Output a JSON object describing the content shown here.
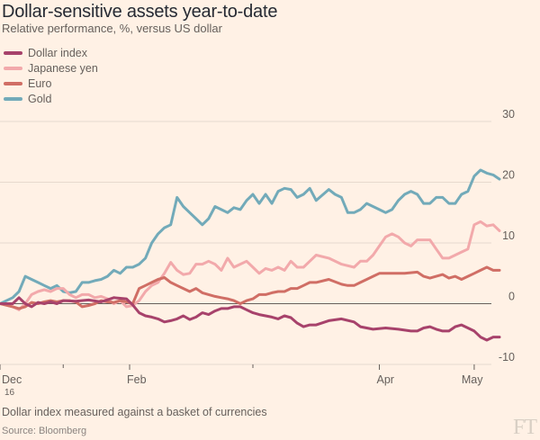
{
  "header": {
    "title": "Dollar-sensitive assets year-to-date",
    "subtitle": "Relative performance, %, versus US dollar"
  },
  "footer": {
    "note": "Dollar index measured against a basket of currencies",
    "source": "Source: Bloomberg",
    "logo": "FT"
  },
  "chart_data": {
    "type": "line",
    "title": "Dollar-sensitive assets year-to-date",
    "ylabel": "Relative performance, %, versus US dollar",
    "ylim": [
      -10,
      30
    ],
    "yticks": [
      30,
      20,
      10,
      0,
      -10
    ],
    "xticks": [
      {
        "label": "Dec",
        "sub": "16",
        "t": 0
      },
      {
        "label": "Feb",
        "sub": "",
        "t": 41
      },
      {
        "label": "Apr",
        "sub": "",
        "t": 120
      },
      {
        "label": "May",
        "sub": "",
        "t": 150
      }
    ],
    "grid": true,
    "legend": "top-left",
    "series": [
      {
        "name": "Dollar index",
        "color": "#a7426b",
        "values": [
          [
            0,
            0
          ],
          [
            4,
            0
          ],
          [
            6,
            1
          ],
          [
            8,
            0
          ],
          [
            10,
            -0.5
          ],
          [
            12,
            0.2
          ],
          [
            14,
            0
          ],
          [
            16,
            0.3
          ],
          [
            18,
            0
          ],
          [
            20,
            0.5
          ],
          [
            24,
            0.4
          ],
          [
            28,
            0.6
          ],
          [
            32,
            0.3
          ],
          [
            36,
            1
          ],
          [
            40,
            0.8
          ],
          [
            42,
            -0.2
          ],
          [
            44,
            -1.5
          ],
          [
            46,
            -2
          ],
          [
            48,
            -2.2
          ],
          [
            50,
            -2.5
          ],
          [
            52,
            -3
          ],
          [
            54,
            -2.8
          ],
          [
            56,
            -2.5
          ],
          [
            58,
            -2
          ],
          [
            60,
            -2.6
          ],
          [
            62,
            -2.2
          ],
          [
            64,
            -1.5
          ],
          [
            66,
            -1.8
          ],
          [
            68,
            -1.2
          ],
          [
            70,
            -0.8
          ],
          [
            72,
            -0.8
          ],
          [
            74,
            -0.5
          ],
          [
            76,
            -0.5
          ],
          [
            78,
            -1
          ],
          [
            80,
            -1.5
          ],
          [
            82,
            -1.8
          ],
          [
            84,
            -2
          ],
          [
            86,
            -2.2
          ],
          [
            88,
            -2.5
          ],
          [
            90,
            -2
          ],
          [
            92,
            -2.3
          ],
          [
            94,
            -3.2
          ],
          [
            96,
            -3.8
          ],
          [
            98,
            -3.5
          ],
          [
            100,
            -3.5
          ],
          [
            104,
            -2.8
          ],
          [
            108,
            -2.5
          ],
          [
            112,
            -3
          ],
          [
            114,
            -3.8
          ],
          [
            118,
            -4.2
          ],
          [
            122,
            -4
          ],
          [
            126,
            -4.2
          ],
          [
            130,
            -4.5
          ],
          [
            132,
            -4.5
          ],
          [
            134,
            -4
          ],
          [
            136,
            -3.8
          ],
          [
            138,
            -4.2
          ],
          [
            140,
            -4.5
          ],
          [
            142,
            -4.5
          ],
          [
            144,
            -3.8
          ],
          [
            146,
            -3.5
          ],
          [
            148,
            -4
          ],
          [
            150,
            -4.5
          ],
          [
            152,
            -5.5
          ],
          [
            154,
            -6
          ],
          [
            156,
            -5.5
          ],
          [
            158,
            -5.5
          ]
        ]
      },
      {
        "name": "Japanese yen",
        "color": "#f2a9ab",
        "values": [
          [
            0,
            0
          ],
          [
            4,
            -0.5
          ],
          [
            6,
            -1
          ],
          [
            8,
            0
          ],
          [
            10,
            1.5
          ],
          [
            12,
            2
          ],
          [
            14,
            2.3
          ],
          [
            16,
            2
          ],
          [
            18,
            2.5
          ],
          [
            20,
            2.5
          ],
          [
            22,
            1.5
          ],
          [
            24,
            1
          ],
          [
            26,
            1.5
          ],
          [
            28,
            1.5
          ],
          [
            30,
            1
          ],
          [
            32,
            1.2
          ],
          [
            34,
            0.8
          ],
          [
            36,
            0
          ],
          [
            38,
            0.5
          ],
          [
            40,
            -0.5
          ],
          [
            42,
            -0.3
          ],
          [
            44,
            0.5
          ],
          [
            46,
            2
          ],
          [
            48,
            3
          ],
          [
            50,
            3.5
          ],
          [
            52,
            5
          ],
          [
            54,
            6.8
          ],
          [
            56,
            5.5
          ],
          [
            58,
            4.8
          ],
          [
            60,
            5
          ],
          [
            62,
            6.5
          ],
          [
            64,
            6.5
          ],
          [
            66,
            7
          ],
          [
            68,
            6.5
          ],
          [
            70,
            5.5
          ],
          [
            72,
            7.5
          ],
          [
            74,
            6
          ],
          [
            76,
            6.5
          ],
          [
            78,
            7
          ],
          [
            80,
            6
          ],
          [
            82,
            5
          ],
          [
            84,
            5.8
          ],
          [
            86,
            5.5
          ],
          [
            88,
            6
          ],
          [
            90,
            5.5
          ],
          [
            92,
            7
          ],
          [
            94,
            6
          ],
          [
            96,
            6
          ],
          [
            98,
            7
          ],
          [
            100,
            8
          ],
          [
            104,
            7.5
          ],
          [
            108,
            6.5
          ],
          [
            112,
            6
          ],
          [
            114,
            7
          ],
          [
            116,
            7
          ],
          [
            118,
            8
          ],
          [
            120,
            9.5
          ],
          [
            122,
            11
          ],
          [
            124,
            11.5
          ],
          [
            126,
            11
          ],
          [
            128,
            10
          ],
          [
            130,
            9.5
          ],
          [
            132,
            10.5
          ],
          [
            134,
            10.5
          ],
          [
            136,
            10.5
          ],
          [
            138,
            9
          ],
          [
            140,
            7.5
          ],
          [
            142,
            7.5
          ],
          [
            144,
            8
          ],
          [
            146,
            8.5
          ],
          [
            148,
            9
          ],
          [
            150,
            13
          ],
          [
            152,
            13.5
          ],
          [
            154,
            12.8
          ],
          [
            156,
            13
          ],
          [
            158,
            12
          ]
        ]
      },
      {
        "name": "Euro",
        "color": "#d06e65",
        "values": [
          [
            0,
            0
          ],
          [
            4,
            -0.5
          ],
          [
            6,
            -0.8
          ],
          [
            8,
            -0.5
          ],
          [
            10,
            0.2
          ],
          [
            12,
            0
          ],
          [
            14,
            0.3
          ],
          [
            16,
            0.5
          ],
          [
            18,
            0.3
          ],
          [
            20,
            0.5
          ],
          [
            22,
            0.5
          ],
          [
            24,
            0.3
          ],
          [
            26,
            -0.5
          ],
          [
            28,
            -0.3
          ],
          [
            30,
            0
          ],
          [
            32,
            0.5
          ],
          [
            34,
            0.3
          ],
          [
            36,
            0.2
          ],
          [
            38,
            0.5
          ],
          [
            40,
            0.3
          ],
          [
            42,
            0
          ],
          [
            44,
            2.5
          ],
          [
            46,
            3
          ],
          [
            48,
            3.5
          ],
          [
            50,
            4
          ],
          [
            52,
            4.3
          ],
          [
            54,
            3.5
          ],
          [
            56,
            3
          ],
          [
            58,
            2.5
          ],
          [
            60,
            2
          ],
          [
            62,
            2.5
          ],
          [
            64,
            1.8
          ],
          [
            66,
            1.5
          ],
          [
            68,
            1.2
          ],
          [
            70,
            1
          ],
          [
            72,
            0.8
          ],
          [
            74,
            0.5
          ],
          [
            76,
            0
          ],
          [
            78,
            0.5
          ],
          [
            80,
            0.8
          ],
          [
            82,
            1.5
          ],
          [
            84,
            1.5
          ],
          [
            86,
            1.8
          ],
          [
            88,
            2
          ],
          [
            90,
            2
          ],
          [
            92,
            2.5
          ],
          [
            94,
            2.5
          ],
          [
            96,
            3
          ],
          [
            98,
            3.5
          ],
          [
            100,
            3.5
          ],
          [
            104,
            4
          ],
          [
            108,
            3.2
          ],
          [
            110,
            3
          ],
          [
            112,
            3
          ],
          [
            114,
            3.5
          ],
          [
            116,
            4
          ],
          [
            118,
            4.5
          ],
          [
            120,
            5
          ],
          [
            124,
            5
          ],
          [
            128,
            5
          ],
          [
            132,
            5.2
          ],
          [
            134,
            4.5
          ],
          [
            136,
            4.2
          ],
          [
            138,
            4.5
          ],
          [
            140,
            4.8
          ],
          [
            142,
            4.2
          ],
          [
            144,
            4.5
          ],
          [
            146,
            4
          ],
          [
            148,
            4.5
          ],
          [
            150,
            5
          ],
          [
            152,
            5.5
          ],
          [
            154,
            6
          ],
          [
            156,
            5.5
          ],
          [
            158,
            5.5
          ]
        ]
      },
      {
        "name": "Gold",
        "color": "#72aab9",
        "values": [
          [
            0,
            0
          ],
          [
            4,
            1
          ],
          [
            6,
            2
          ],
          [
            8,
            4.5
          ],
          [
            10,
            4
          ],
          [
            12,
            3.5
          ],
          [
            14,
            3
          ],
          [
            16,
            2.5
          ],
          [
            18,
            3
          ],
          [
            20,
            2
          ],
          [
            22,
            1.8
          ],
          [
            24,
            2
          ],
          [
            26,
            3.5
          ],
          [
            28,
            3.5
          ],
          [
            30,
            3.8
          ],
          [
            32,
            4
          ],
          [
            34,
            4.5
          ],
          [
            36,
            5.5
          ],
          [
            38,
            5
          ],
          [
            40,
            6
          ],
          [
            42,
            6
          ],
          [
            44,
            6.5
          ],
          [
            46,
            7.5
          ],
          [
            48,
            10
          ],
          [
            50,
            11.5
          ],
          [
            52,
            12.5
          ],
          [
            54,
            13
          ],
          [
            56,
            17.5
          ],
          [
            58,
            16
          ],
          [
            60,
            15
          ],
          [
            62,
            14
          ],
          [
            64,
            13
          ],
          [
            66,
            14
          ],
          [
            68,
            16
          ],
          [
            70,
            15.5
          ],
          [
            72,
            15
          ],
          [
            74,
            15.8
          ],
          [
            76,
            15.5
          ],
          [
            78,
            17
          ],
          [
            80,
            18
          ],
          [
            82,
            16.5
          ],
          [
            84,
            18
          ],
          [
            86,
            16.5
          ],
          [
            88,
            18.5
          ],
          [
            90,
            19
          ],
          [
            92,
            18.8
          ],
          [
            94,
            17.5
          ],
          [
            96,
            18
          ],
          [
            98,
            19
          ],
          [
            100,
            17
          ],
          [
            104,
            18.8
          ],
          [
            106,
            18
          ],
          [
            108,
            17.5
          ],
          [
            110,
            15
          ],
          [
            112,
            15
          ],
          [
            114,
            15.5
          ],
          [
            116,
            16.5
          ],
          [
            118,
            16
          ],
          [
            120,
            15.5
          ],
          [
            122,
            15
          ],
          [
            124,
            15.5
          ],
          [
            126,
            17
          ],
          [
            128,
            18
          ],
          [
            130,
            18.5
          ],
          [
            132,
            18
          ],
          [
            134,
            16.5
          ],
          [
            136,
            16.5
          ],
          [
            138,
            17.5
          ],
          [
            140,
            17.5
          ],
          [
            142,
            16.5
          ],
          [
            144,
            16.5
          ],
          [
            146,
            18
          ],
          [
            148,
            18.5
          ],
          [
            150,
            21
          ],
          [
            152,
            22
          ],
          [
            154,
            21.5
          ],
          [
            156,
            21.2
          ],
          [
            158,
            20.5
          ]
        ]
      }
    ]
  }
}
